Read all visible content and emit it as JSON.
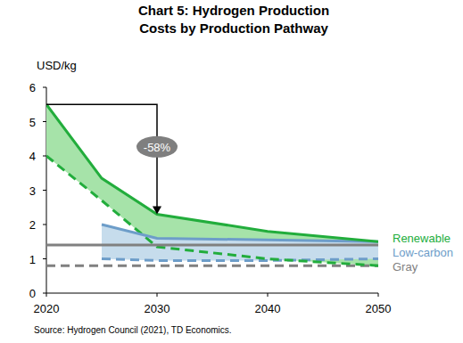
{
  "chart_data": {
    "type": "line",
    "title": "Chart 5: Hydrogen Production Costs by Production Pathway",
    "y_label": "USD/kg",
    "source": "Source: Hydrogen Council (2021), TD Economics.",
    "annotation": "-58%",
    "x": [
      2020,
      2025,
      2030,
      2040,
      2050
    ],
    "xlim": [
      2020,
      2050
    ],
    "xticks": [
      2020,
      2030,
      2040,
      2050
    ],
    "ylim": [
      0,
      6
    ],
    "yticks": [
      0,
      1,
      2,
      3,
      4,
      5,
      6
    ],
    "grid": false,
    "legend": "right",
    "series": [
      {
        "name": "Renewable",
        "type": "range_area",
        "color": "#22ad3c",
        "fill": "#a6e3a9",
        "values": [
          5.5,
          3.35,
          2.3,
          1.8,
          1.5
        ],
        "low_values": [
          4.0,
          2.7,
          1.35,
          1.0,
          0.8
        ]
      },
      {
        "name": "Low-carbon",
        "type": "range_area",
        "color": "#6d9dc9",
        "fill": "#c6dcec",
        "values": [
          null,
          2.0,
          1.6,
          1.55,
          1.5
        ],
        "low_values": [
          null,
          1.0,
          0.95,
          0.95,
          1.0
        ]
      },
      {
        "name": "Gray",
        "type": "range_line",
        "color": "#808080",
        "values": [
          1.4,
          1.4,
          1.4,
          1.4,
          1.4
        ],
        "low_values": [
          0.8,
          0.8,
          0.8,
          0.8,
          0.8
        ]
      }
    ]
  }
}
